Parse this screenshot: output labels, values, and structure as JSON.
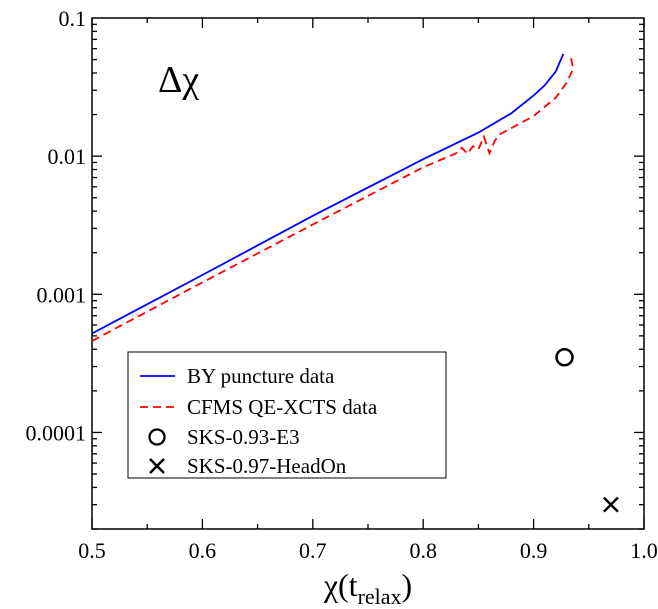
{
  "chart_data": {
    "type": "line",
    "annotation": "Δχ",
    "xlabel_main": "χ(t",
    "xlabel_sub": "relax",
    "xlabel_close": ")",
    "ylabel": "",
    "xlim": [
      0.5,
      1.0
    ],
    "ylim": [
      2e-05,
      0.1
    ],
    "yscale": "log",
    "grid": false,
    "legend_position": "bottom-left",
    "x_ticks": [
      {
        "value": 0.5,
        "label": "0.5"
      },
      {
        "value": 0.6,
        "label": "0.6"
      },
      {
        "value": 0.7,
        "label": "0.7"
      },
      {
        "value": 0.8,
        "label": "0.8"
      },
      {
        "value": 0.9,
        "label": "0.9"
      },
      {
        "value": 1.0,
        "label": "1.0"
      }
    ],
    "y_ticks": [
      {
        "value": 0.0001,
        "label": "0.0001"
      },
      {
        "value": 0.001,
        "label": "0.001"
      },
      {
        "value": 0.01,
        "label": "0.01"
      },
      {
        "value": 0.1,
        "label": "0.1"
      }
    ],
    "series": [
      {
        "name": "BY puncture data",
        "style": "solid",
        "color": "#0000ff",
        "points": [
          [
            0.5,
            0.00052
          ],
          [
            0.6,
            0.00138
          ],
          [
            0.7,
            0.0037
          ],
          [
            0.8,
            0.0095
          ],
          [
            0.85,
            0.0148
          ],
          [
            0.88,
            0.0205
          ],
          [
            0.9,
            0.0275
          ],
          [
            0.91,
            0.0325
          ],
          [
            0.92,
            0.041
          ],
          [
            0.927,
            0.055
          ]
        ]
      },
      {
        "name": "CFMS QE-XCTS data",
        "style": "dashed",
        "color": "#ff0000",
        "points": [
          [
            0.5,
            0.00046
          ],
          [
            0.6,
            0.00122
          ],
          [
            0.7,
            0.0032
          ],
          [
            0.8,
            0.0083
          ],
          [
            0.83,
            0.0105
          ],
          [
            0.835,
            0.0115
          ],
          [
            0.84,
            0.0104
          ],
          [
            0.845,
            0.0118
          ],
          [
            0.85,
            0.0112
          ],
          [
            0.855,
            0.0138
          ],
          [
            0.86,
            0.0105
          ],
          [
            0.865,
            0.013
          ],
          [
            0.87,
            0.0145
          ],
          [
            0.9,
            0.0195
          ],
          [
            0.92,
            0.0265
          ],
          [
            0.93,
            0.034
          ],
          [
            0.936,
            0.043
          ],
          [
            0.933,
            0.055
          ]
        ]
      },
      {
        "name": "SKS-0.93-E3",
        "style": "marker-circle",
        "color": "#000000",
        "points": [
          [
            0.928,
            0.00035
          ]
        ]
      },
      {
        "name": "SKS-0.97-HeadOn",
        "style": "marker-x",
        "color": "#000000",
        "points": [
          [
            0.97,
            3e-05
          ]
        ]
      }
    ]
  }
}
